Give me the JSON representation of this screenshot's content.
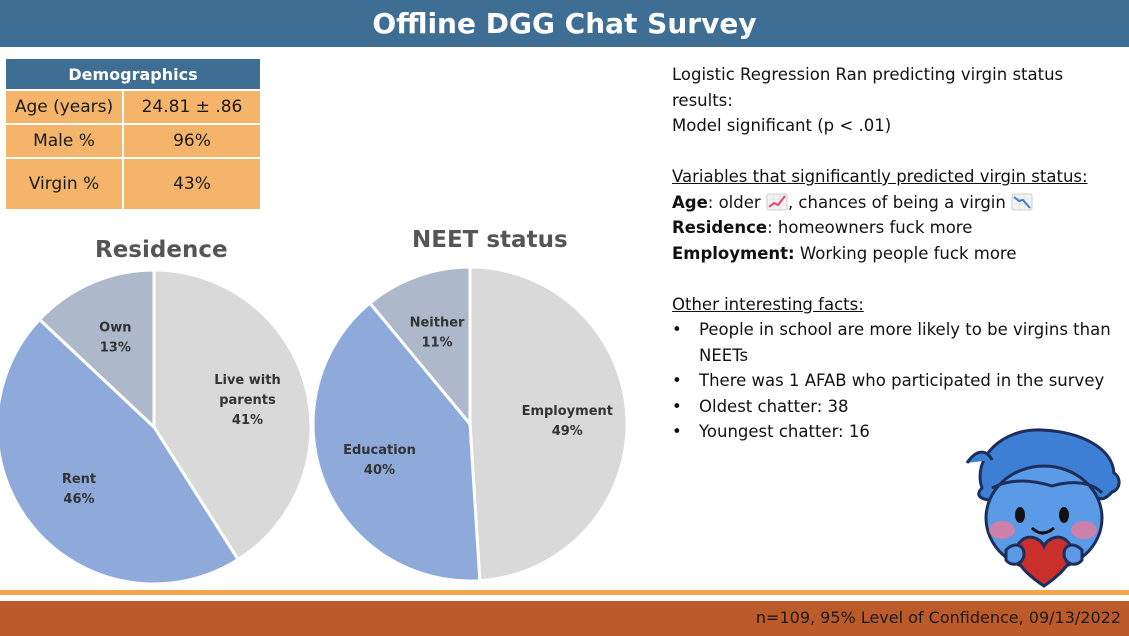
{
  "title": "Offline DGG Chat Survey",
  "demographics": {
    "header": "Demographics",
    "rows": [
      {
        "label": "Age (years)",
        "value": "24.81 ± .86"
      },
      {
        "label": "Male %",
        "value": "96%"
      },
      {
        "label": "Virgin %",
        "value": "43%"
      }
    ]
  },
  "chart_data": [
    {
      "type": "pie",
      "title": "Residence",
      "slices": [
        {
          "label": [
            "Live with",
            "parents"
          ],
          "value": 41,
          "pct_text": "41%",
          "color": "#d9d9d9"
        },
        {
          "label": [
            "Rent"
          ],
          "value": 46,
          "pct_text": "46%",
          "color": "#8eaadb"
        },
        {
          "label": [
            "Own"
          ],
          "value": 13,
          "pct_text": "13%",
          "color": "#adb9ca"
        }
      ]
    },
    {
      "type": "pie",
      "title": "NEET status",
      "slices": [
        {
          "label": [
            "Employment"
          ],
          "value": 49,
          "pct_text": "49%",
          "color": "#d9d9d9"
        },
        {
          "label": [
            "Education"
          ],
          "value": 40,
          "pct_text": "40%",
          "color": "#8eaadb"
        },
        {
          "label": [
            "Neither"
          ],
          "value": 11,
          "pct_text": "11%",
          "color": "#adb9ca"
        }
      ]
    }
  ],
  "notes": {
    "line1": "Logistic Regression Ran predicting virgin status results:",
    "line2": "Model significant (p < .01)",
    "heading1": "Variables that significantly predicted virgin status:",
    "age_key": "Age",
    "age_text_a": ": older",
    "age_text_b": ", chances of being a virgin",
    "residence_key": "Residence",
    "residence_text": ": homeowners fuck more",
    "employment_key": "Employment:",
    "employment_text": " Working people fuck more",
    "heading2": "Other interesting facts:",
    "facts": [
      "People in school are more likely to be virgins than NEETs",
      "There was 1 AFAB who participated in the survey",
      "Oldest chatter: 38",
      "Youngest chatter: 16"
    ],
    "icons": [
      "chart-increasing-icon",
      "chart-decreasing-icon"
    ]
  },
  "footer": "n=109, 95% Level of Confidence, 09/13/2022",
  "colors": {
    "header_blue": "#3e6e94",
    "table_orange": "#f4b46a",
    "footer_orange": "#bd5a2a"
  }
}
